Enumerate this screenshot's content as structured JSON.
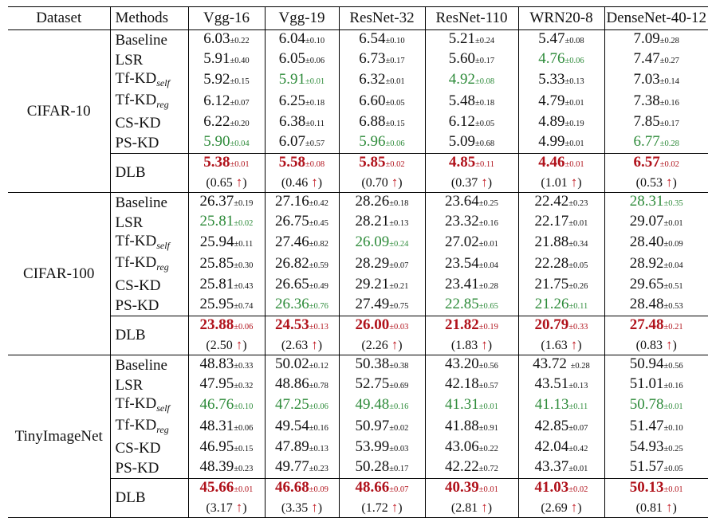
{
  "columns": [
    "Dataset",
    "Methods",
    "Vgg-16",
    "Vgg-19",
    "ResNet-32",
    "ResNet-110",
    "WRN20-8",
    "DenseNet-40-12"
  ],
  "groups": [
    {
      "dataset": "CIFAR-10",
      "rows": [
        {
          "method": "Baseline",
          "sub": "",
          "cells": [
            [
              "6.03",
              "±0.22",
              ""
            ],
            [
              "6.04",
              "±0.10",
              ""
            ],
            [
              "6.54",
              "±0.10",
              ""
            ],
            [
              "5.21",
              "±0.24",
              ""
            ],
            [
              "5.47",
              "±0.08",
              ""
            ],
            [
              "7.09",
              "±0.28",
              ""
            ]
          ]
        },
        {
          "method": "LSR",
          "sub": "",
          "cells": [
            [
              "5.91",
              "±0.40",
              ""
            ],
            [
              "6.05",
              "±0.06",
              ""
            ],
            [
              "6.73",
              "±0.17",
              ""
            ],
            [
              "5.60",
              "±0.17",
              ""
            ],
            [
              "4.76",
              "±0.06",
              "green"
            ],
            [
              "7.47",
              "±0.27",
              ""
            ]
          ]
        },
        {
          "method": "Tf-KD",
          "sub": "self",
          "cells": [
            [
              "5.92",
              "±0.15",
              ""
            ],
            [
              "5.91",
              "±0.01",
              "green"
            ],
            [
              "6.32",
              "±0.01",
              ""
            ],
            [
              "4.92",
              "±0.08",
              "green"
            ],
            [
              "5.33",
              "±0.13",
              ""
            ],
            [
              "7.03",
              "±0.14",
              ""
            ]
          ]
        },
        {
          "method": "Tf-KD",
          "sub": "reg",
          "cells": [
            [
              "6.12",
              "±0.07",
              ""
            ],
            [
              "6.25",
              "±0.18",
              ""
            ],
            [
              "6.60",
              "±0.05",
              ""
            ],
            [
              "5.48",
              "±0.18",
              ""
            ],
            [
              "4.79",
              "±0.01",
              ""
            ],
            [
              "7.38",
              "±0.16",
              ""
            ]
          ]
        },
        {
          "method": "CS-KD",
          "sub": "",
          "cells": [
            [
              "6.22",
              "±0.20",
              ""
            ],
            [
              "6.38",
              "±0.11",
              ""
            ],
            [
              "6.88",
              "±0.15",
              ""
            ],
            [
              "6.12",
              "±0.05",
              ""
            ],
            [
              "4.89",
              "±0.19",
              ""
            ],
            [
              "7.85",
              "±0.17",
              ""
            ]
          ]
        },
        {
          "method": "PS-KD",
          "sub": "",
          "cells": [
            [
              "5.90",
              "±0.04",
              "green"
            ],
            [
              "6.07",
              "±0.57",
              ""
            ],
            [
              "5.96",
              "±0.06",
              "green"
            ],
            [
              "5.09",
              "±0.68",
              ""
            ],
            [
              "4.99",
              "±0.01",
              ""
            ],
            [
              "6.77",
              "±0.28",
              "green"
            ]
          ]
        }
      ],
      "dlb": {
        "method": "DLB",
        "cells": [
          [
            "5.38",
            "±0.01"
          ],
          [
            "5.58",
            "±0.08"
          ],
          [
            "5.85",
            "±0.02"
          ],
          [
            "4.85",
            "±0.11"
          ],
          [
            "4.46",
            "±0.01"
          ],
          [
            "6.57",
            "±0.02"
          ]
        ],
        "gains": [
          "(0.65",
          "(0.46",
          "(0.70",
          "(0.37",
          "(1.01",
          "(0.53"
        ]
      }
    },
    {
      "dataset": "CIFAR-100",
      "rows": [
        {
          "method": "Baseline",
          "sub": "",
          "cells": [
            [
              "26.37",
              "±0.19",
              ""
            ],
            [
              "27.16",
              "±0.42",
              ""
            ],
            [
              "28.26",
              "±0.18",
              ""
            ],
            [
              "23.64",
              "±0.25",
              ""
            ],
            [
              "22.42",
              "±0.23",
              ""
            ],
            [
              "28.31",
              "±0.35",
              "green"
            ]
          ]
        },
        {
          "method": "LSR",
          "sub": "",
          "cells": [
            [
              "25.81",
              "±0.02",
              "green"
            ],
            [
              "26.75",
              "±0.45",
              ""
            ],
            [
              "28.21",
              "±0.13",
              ""
            ],
            [
              "23.32",
              "±0.16",
              ""
            ],
            [
              "22.17",
              "±0.01",
              ""
            ],
            [
              "29.07",
              "±0.01",
              ""
            ]
          ]
        },
        {
          "method": "Tf-KD",
          "sub": "self",
          "cells": [
            [
              "25.94",
              "±0.11",
              ""
            ],
            [
              "27.46",
              "±0.82",
              ""
            ],
            [
              "26.09",
              "±0.24",
              "green"
            ],
            [
              "27.02",
              "±0.01",
              ""
            ],
            [
              "21.88",
              "±0.34",
              ""
            ],
            [
              "28.40",
              "±0.09",
              ""
            ]
          ]
        },
        {
          "method": "Tf-KD",
          "sub": "reg",
          "cells": [
            [
              "25.85",
              "±0.30",
              ""
            ],
            [
              "26.82",
              "±0.59",
              ""
            ],
            [
              "28.29",
              "±0.07",
              ""
            ],
            [
              "23.54",
              "±0.04",
              ""
            ],
            [
              "22.28",
              "±0.05",
              ""
            ],
            [
              "28.92",
              "±0.04",
              ""
            ]
          ]
        },
        {
          "method": "CS-KD",
          "sub": "",
          "cells": [
            [
              "25.81",
              "±0.43",
              ""
            ],
            [
              "26.65",
              "±0.49",
              ""
            ],
            [
              "29.21",
              "±0.21",
              ""
            ],
            [
              "23.41",
              "±0.28",
              ""
            ],
            [
              "21.75",
              "±0.26",
              ""
            ],
            [
              "29.65",
              "±0.51",
              ""
            ]
          ]
        },
        {
          "method": "PS-KD",
          "sub": "",
          "cells": [
            [
              "25.95",
              "±0.74",
              ""
            ],
            [
              "26.36",
              "±0.76",
              "green"
            ],
            [
              "27.49",
              "±0.75",
              ""
            ],
            [
              "22.85",
              "±0.65",
              "green"
            ],
            [
              "21.26",
              "±0.11",
              "green"
            ],
            [
              "28.48",
              "±0.53",
              ""
            ]
          ]
        }
      ],
      "dlb": {
        "method": "DLB",
        "cells": [
          [
            "23.88",
            "±0.06"
          ],
          [
            "24.53",
            "±0.13"
          ],
          [
            "26.00",
            "±0.03"
          ],
          [
            "21.82",
            "±0.19"
          ],
          [
            "20.79",
            "±0.33"
          ],
          [
            "27.48",
            "±0.21"
          ]
        ],
        "gains": [
          "(2.50",
          "(2.63",
          "(2.26",
          "(1.83",
          "(1.63",
          "(0.83"
        ]
      }
    },
    {
      "dataset": "TinyImageNet",
      "rows": [
        {
          "method": "Baseline",
          "sub": "",
          "cells": [
            [
              "48.83",
              "±0.33",
              ""
            ],
            [
              "50.02",
              "±0.12",
              ""
            ],
            [
              "50.38",
              "±0.38",
              ""
            ],
            [
              "43.20",
              "±0.56",
              ""
            ],
            [
              "43.72 ",
              "±0.28",
              ""
            ],
            [
              "50.94",
              "±0.56",
              ""
            ]
          ]
        },
        {
          "method": "LSR",
          "sub": "",
          "cells": [
            [
              "47.95",
              "±0.32",
              ""
            ],
            [
              "48.86",
              "±0.78",
              ""
            ],
            [
              "52.75",
              "±0.69",
              ""
            ],
            [
              "42.18",
              "±0.57",
              ""
            ],
            [
              "43.51",
              "±0.13",
              ""
            ],
            [
              "51.01",
              "±0.16",
              ""
            ]
          ]
        },
        {
          "method": "Tf-KD",
          "sub": "self",
          "cells": [
            [
              "46.76",
              "±0.10",
              "green"
            ],
            [
              "47.25",
              "±0.06",
              "green"
            ],
            [
              "49.48",
              "±0.16",
              "green"
            ],
            [
              "41.31",
              "±0.01",
              "green"
            ],
            [
              "41.13",
              "±0.11",
              "green"
            ],
            [
              "50.78",
              "±0.01",
              "green"
            ]
          ]
        },
        {
          "method": "Tf-KD",
          "sub": "reg",
          "cells": [
            [
              "48.31",
              "±0.06",
              ""
            ],
            [
              "49.54",
              "±0.16",
              ""
            ],
            [
              "50.97",
              "±0.02",
              ""
            ],
            [
              "41.88",
              "±0.91",
              ""
            ],
            [
              "42.85",
              "±0.07",
              ""
            ],
            [
              "51.47",
              "±0.10",
              ""
            ]
          ]
        },
        {
          "method": "CS-KD",
          "sub": "",
          "cells": [
            [
              "46.95",
              "±0.15",
              ""
            ],
            [
              "47.89",
              "±0.13",
              ""
            ],
            [
              "53.99",
              "±0.03",
              ""
            ],
            [
              "43.06",
              "±0.22",
              ""
            ],
            [
              "42.04",
              "±0.42",
              ""
            ],
            [
              "54.93",
              "±0.25",
              ""
            ]
          ]
        },
        {
          "method": "PS-KD",
          "sub": "",
          "cells": [
            [
              "48.39",
              "±0.23",
              ""
            ],
            [
              "49.77",
              "±0.23",
              ""
            ],
            [
              "50.28",
              "±0.17",
              ""
            ],
            [
              "42.22",
              "±0.72",
              ""
            ],
            [
              "43.37",
              "±0.01",
              ""
            ],
            [
              "51.57",
              "±0.05",
              ""
            ]
          ]
        }
      ],
      "dlb": {
        "method": "DLB",
        "cells": [
          [
            "45.66",
            "±0.01"
          ],
          [
            "46.68",
            "±0.09"
          ],
          [
            "48.66",
            "±0.07"
          ],
          [
            "40.39",
            "±0.01"
          ],
          [
            "41.03",
            "±0.02"
          ],
          [
            "50.13",
            "±0.01"
          ]
        ],
        "gains": [
          "(3.17",
          "(3.35",
          "(1.72",
          "(2.81",
          "(2.69",
          "(0.81"
        ]
      }
    }
  ],
  "arrow_symbol": "↑"
}
